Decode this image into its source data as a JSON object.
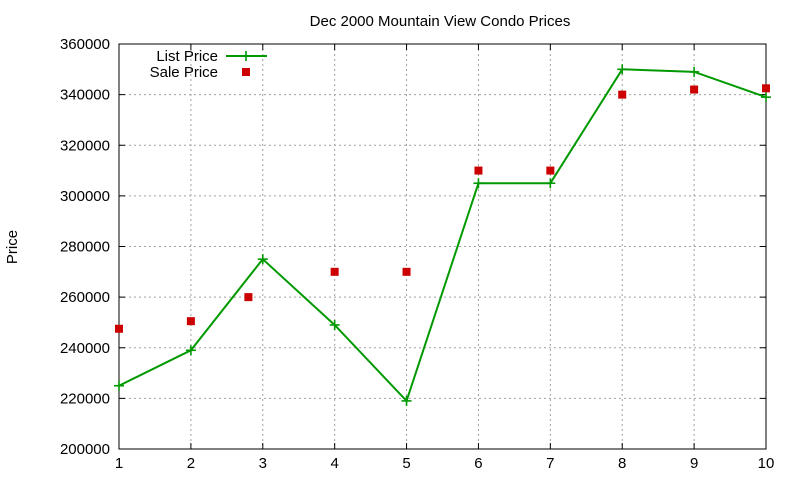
{
  "chart_data": {
    "type": "line",
    "title": "Dec 2000 Mountain View Condo Prices",
    "xlabel": "",
    "ylabel": "Price",
    "x": [
      1,
      2,
      3,
      4,
      5,
      6,
      7,
      8,
      9,
      10
    ],
    "xlim": [
      1,
      10
    ],
    "ylim": [
      200000,
      360000
    ],
    "x_ticks": [
      "1",
      "2",
      "3",
      "4",
      "5",
      "6",
      "7",
      "8",
      "9",
      "10"
    ],
    "y_ticks": [
      "200000",
      "220000",
      "240000",
      "260000",
      "280000",
      "300000",
      "320000",
      "340000",
      "360000"
    ],
    "grid": true,
    "legend_position": "top-left",
    "series": [
      {
        "name": "List Price",
        "style": "linespoints",
        "marker": "plus",
        "color": "#009900",
        "x": [
          1,
          2,
          3,
          4,
          5,
          6,
          7,
          8,
          9,
          10
        ],
        "values": [
          225000,
          239000,
          275000,
          249000,
          219000,
          305000,
          305000,
          350000,
          349000,
          339000
        ]
      },
      {
        "name": "Sale Price",
        "style": "points",
        "marker": "square",
        "color": "#cc0000",
        "x": [
          1,
          2,
          2.8,
          4,
          5,
          6,
          7,
          8,
          9,
          10
        ],
        "values": [
          247500,
          250500,
          260000,
          270000,
          270000,
          310000,
          310000,
          340000,
          342000,
          342500
        ]
      }
    ]
  }
}
